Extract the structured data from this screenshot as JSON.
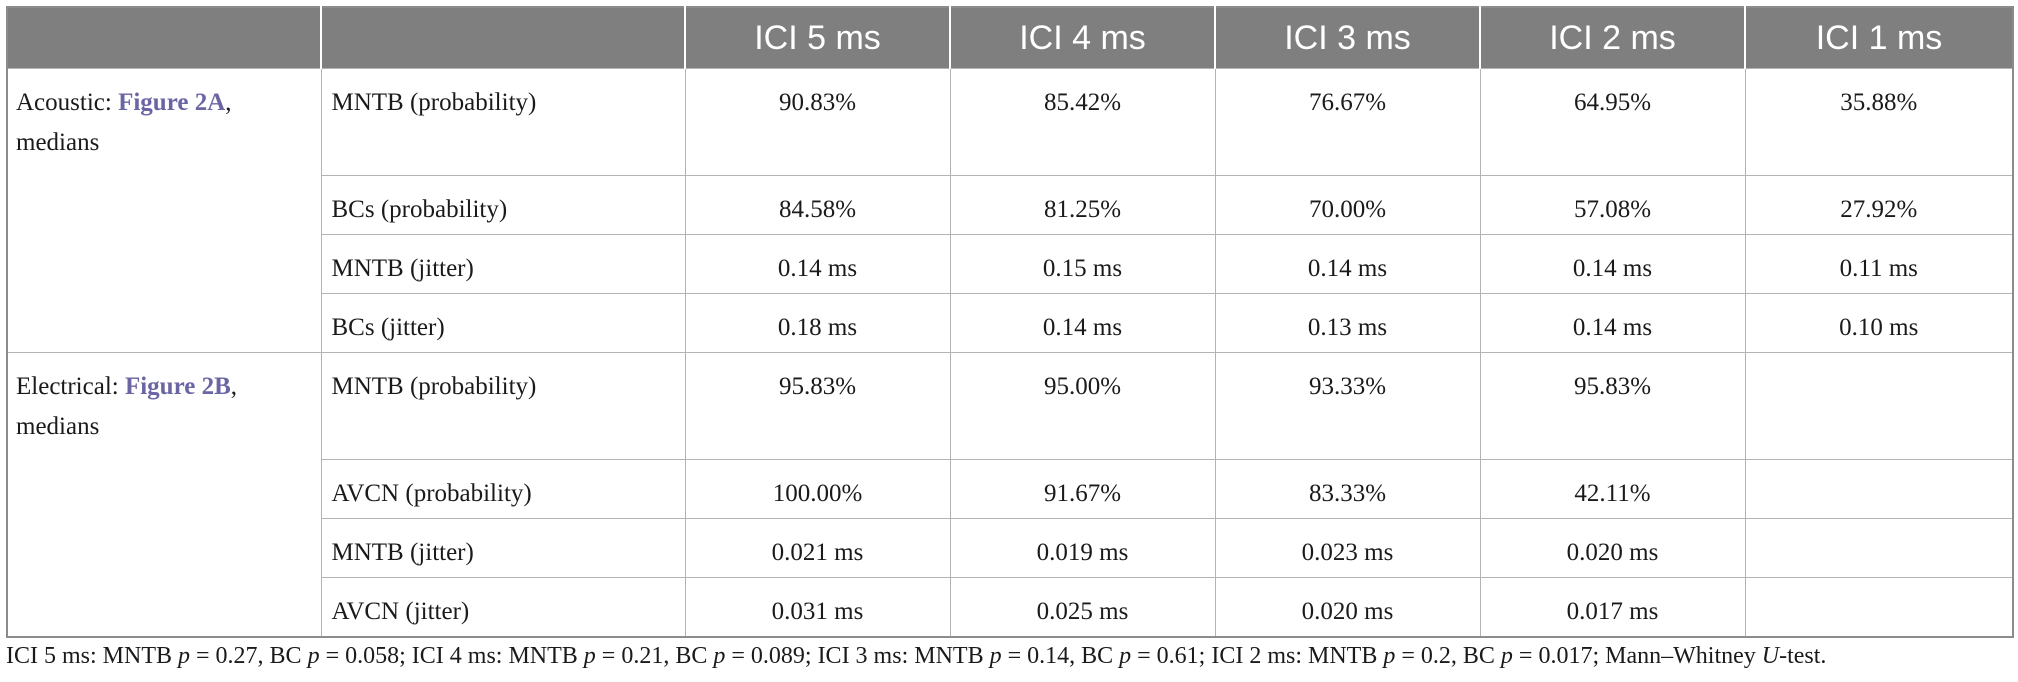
{
  "header": {
    "group": "",
    "param": "",
    "columns": [
      "ICI 5 ms",
      "ICI 4 ms",
      "ICI 3 ms",
      "ICI 2 ms",
      "ICI 1 ms"
    ]
  },
  "groups": [
    {
      "label_prefix": "Acoustic: ",
      "figure_link": "Figure 2A",
      "label_suffix": ",",
      "label_line2": "medians",
      "rows": [
        {
          "param": "MNTB (probability)",
          "values": [
            "90.83%",
            "85.42%",
            "76.67%",
            "64.95%",
            "35.88%"
          ]
        },
        {
          "param": "BCs (probability)",
          "values": [
            "84.58%",
            "81.25%",
            "70.00%",
            "57.08%",
            "27.92%"
          ]
        },
        {
          "param": "MNTB (jitter)",
          "values": [
            "0.14 ms",
            "0.15 ms",
            "0.14 ms",
            "0.14 ms",
            "0.11 ms"
          ]
        },
        {
          "param": "BCs (jitter)",
          "values": [
            "0.18 ms",
            "0.14 ms",
            "0.13 ms",
            "0.14 ms",
            "0.10 ms"
          ]
        }
      ]
    },
    {
      "label_prefix": "Electrical: ",
      "figure_link": "Figure 2B",
      "label_suffix": ",",
      "label_line2": "medians",
      "rows": [
        {
          "param": "MNTB (probability)",
          "values": [
            "95.83%",
            "95.00%",
            "93.33%",
            "95.83%",
            ""
          ]
        },
        {
          "param": "AVCN (probability)",
          "values": [
            "100.00%",
            "91.67%",
            "83.33%",
            "42.11%",
            ""
          ]
        },
        {
          "param": "MNTB (jitter)",
          "values": [
            "0.021 ms",
            "0.019 ms",
            "0.023 ms",
            "0.020 ms",
            ""
          ]
        },
        {
          "param": "AVCN (jitter)",
          "values": [
            "0.031 ms",
            "0.025 ms",
            "0.020 ms",
            "0.017 ms",
            ""
          ]
        }
      ]
    }
  ],
  "footnote": {
    "segments": [
      {
        "text": "ICI 5 ms: MNTB ",
        "italic": false
      },
      {
        "text": "p",
        "italic": true
      },
      {
        "text": " = 0.27, BC ",
        "italic": false
      },
      {
        "text": "p",
        "italic": true
      },
      {
        "text": " = 0.058; ICI 4 ms: MNTB ",
        "italic": false
      },
      {
        "text": "p",
        "italic": true
      },
      {
        "text": " = 0.21, BC ",
        "italic": false
      },
      {
        "text": "p",
        "italic": true
      },
      {
        "text": " = 0.089; ICI 3 ms: MNTB ",
        "italic": false
      },
      {
        "text": "p",
        "italic": true
      },
      {
        "text": " = 0.14, BC ",
        "italic": false
      },
      {
        "text": "p",
        "italic": true
      },
      {
        "text": " = 0.61; ICI 2 ms: MNTB ",
        "italic": false
      },
      {
        "text": "p",
        "italic": true
      },
      {
        "text": " = 0.2, BC ",
        "italic": false
      },
      {
        "text": "p",
        "italic": true
      },
      {
        "text": " = 0.017; Mann–Whitney ",
        "italic": false
      },
      {
        "text": "U",
        "italic": true
      },
      {
        "text": "-test.",
        "italic": false
      }
    ]
  },
  "colors": {
    "header_bg": "#7f7f7f",
    "header_text": "#ffffff",
    "figure_link": "#6a66a3",
    "grid": "#b3b3b3"
  }
}
